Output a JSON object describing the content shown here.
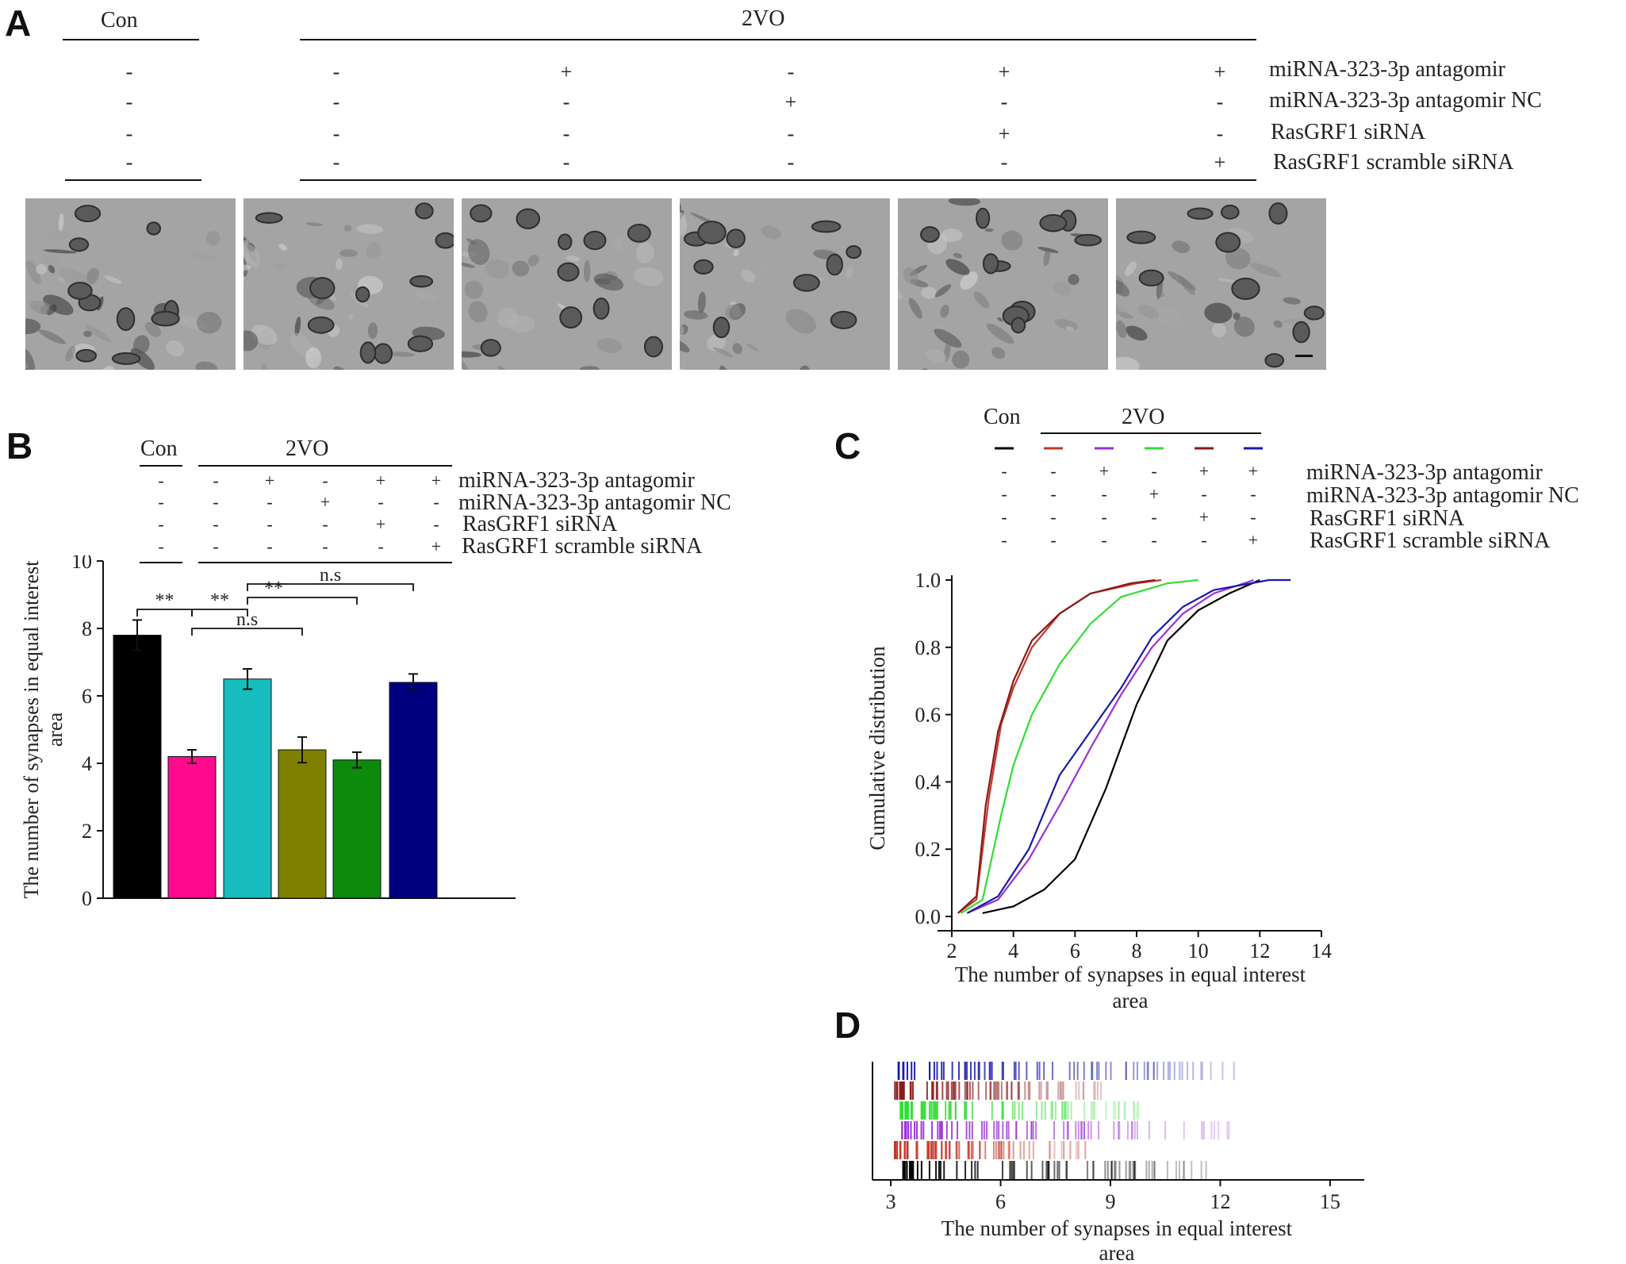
{
  "panels": [
    "A",
    "B",
    "C",
    "D"
  ],
  "header": {
    "con": "Con",
    "model": "2VO"
  },
  "treatments": [
    "miRNA-323-3p antagomir",
    "miRNA-323-3p antagomir NC",
    "RasGRF1 siRNA",
    "RasGRF1 scramble siRNA"
  ],
  "signs": [
    [
      "-",
      "-",
      "-",
      "-"
    ],
    [
      "-",
      "-",
      "-",
      "-"
    ],
    [
      "+",
      "-",
      "-",
      "-"
    ],
    [
      "-",
      "+",
      "-",
      "-"
    ],
    [
      "+",
      "-",
      "+",
      "-"
    ],
    [
      "+",
      "-",
      "-",
      "+"
    ]
  ],
  "colors": [
    "#000000",
    "#ff0a8c",
    "#18bdbd",
    "#808000",
    "#0b8a0b",
    "#00007f"
  ],
  "line_colors": [
    "#000000",
    "#c0392b",
    "#9b30d9",
    "#33dd33",
    "#8b1a1a",
    "#1a1aa8"
  ],
  "panel_b": {
    "scale_bar": "visible in last micrograph"
  },
  "chart_data": [
    {
      "type": "bar",
      "panel": "B",
      "ylabel": "The number of synapses in equal interest area",
      "ylim": [
        0,
        10
      ],
      "yticks": [
        "0",
        "2",
        "4",
        "6",
        "8",
        "10"
      ],
      "values": [
        7.8,
        4.2,
        6.5,
        4.4,
        4.1,
        6.4
      ],
      "errors": [
        0.45,
        0.2,
        0.3,
        0.38,
        0.23,
        0.25
      ],
      "annotations": [
        "**",
        "**",
        "**",
        "n.s",
        "n.s"
      ]
    },
    {
      "type": "line",
      "panel": "C",
      "xlabel": "The number of synapses in equal interest area",
      "ylabel": "Cumulative distribution",
      "xlim": [
        2,
        14
      ],
      "ylim": [
        0,
        1.0
      ],
      "xticks": [
        "2",
        "4",
        "6",
        "8",
        "10",
        "12",
        "14"
      ],
      "yticks": [
        "0.0",
        "0.2",
        "0.4",
        "0.6",
        "0.8",
        "1.0"
      ],
      "series": [
        {
          "points": [
            [
              3,
              0.01
            ],
            [
              4,
              0.03
            ],
            [
              5,
              0.08
            ],
            [
              6,
              0.17
            ],
            [
              7,
              0.38
            ],
            [
              8,
              0.63
            ],
            [
              9,
              0.82
            ],
            [
              10,
              0.91
            ],
            [
              11,
              0.96
            ],
            [
              12,
              1.0
            ]
          ]
        },
        {
          "points": [
            [
              2.2,
              0.01
            ],
            [
              2.8,
              0.05
            ],
            [
              3.2,
              0.35
            ],
            [
              3.6,
              0.57
            ],
            [
              4,
              0.68
            ],
            [
              4.6,
              0.8
            ],
            [
              5.5,
              0.9
            ],
            [
              6.5,
              0.96
            ],
            [
              8,
              0.99
            ],
            [
              8.8,
              1.0
            ]
          ]
        },
        {
          "points": [
            [
              2.5,
              0.01
            ],
            [
              3.5,
              0.05
            ],
            [
              4.5,
              0.17
            ],
            [
              5.5,
              0.33
            ],
            [
              6.5,
              0.5
            ],
            [
              7.5,
              0.66
            ],
            [
              8.5,
              0.8
            ],
            [
              9.5,
              0.9
            ],
            [
              10.5,
              0.96
            ],
            [
              11.8,
              1.0
            ]
          ]
        },
        {
          "points": [
            [
              2.3,
              0.01
            ],
            [
              3,
              0.05
            ],
            [
              3.6,
              0.3
            ],
            [
              4,
              0.45
            ],
            [
              4.6,
              0.6
            ],
            [
              5.5,
              0.75
            ],
            [
              6.5,
              0.87
            ],
            [
              7.5,
              0.95
            ],
            [
              9,
              0.99
            ],
            [
              10,
              1.0
            ]
          ]
        },
        {
          "points": [
            [
              2.2,
              0.01
            ],
            [
              2.8,
              0.06
            ],
            [
              3.1,
              0.33
            ],
            [
              3.5,
              0.55
            ],
            [
              4,
              0.7
            ],
            [
              4.6,
              0.82
            ],
            [
              5.5,
              0.9
            ],
            [
              6.5,
              0.96
            ],
            [
              7.8,
              0.99
            ],
            [
              8.6,
              1.0
            ]
          ]
        },
        {
          "points": [
            [
              2.5,
              0.01
            ],
            [
              3.5,
              0.06
            ],
            [
              4.5,
              0.2
            ],
            [
              5.5,
              0.42
            ],
            [
              6.5,
              0.55
            ],
            [
              7.5,
              0.68
            ],
            [
              8.5,
              0.83
            ],
            [
              9.5,
              0.92
            ],
            [
              10.5,
              0.97
            ],
            [
              12.3,
              1.0
            ],
            [
              13,
              1.0
            ]
          ]
        }
      ]
    },
    {
      "type": "scatter",
      "panel": "D",
      "xlabel": "The number of synapses in equal interest area",
      "xlim": [
        2.5,
        15.5
      ],
      "xticks": [
        "3",
        "6",
        "9",
        "12",
        "15"
      ],
      "rows": [
        {
          "color_index": 5,
          "range": [
            3.1,
            13
          ]
        },
        {
          "color_index": 4,
          "range": [
            3.1,
            8.8
          ]
        },
        {
          "color_index": 3,
          "range": [
            3.2,
            10
          ]
        },
        {
          "color_index": 2,
          "range": [
            3.3,
            12.3
          ]
        },
        {
          "color_index": 1,
          "range": [
            3.1,
            8.6
          ]
        },
        {
          "color_index": 0,
          "range": [
            3.3,
            11.7
          ]
        }
      ]
    }
  ]
}
